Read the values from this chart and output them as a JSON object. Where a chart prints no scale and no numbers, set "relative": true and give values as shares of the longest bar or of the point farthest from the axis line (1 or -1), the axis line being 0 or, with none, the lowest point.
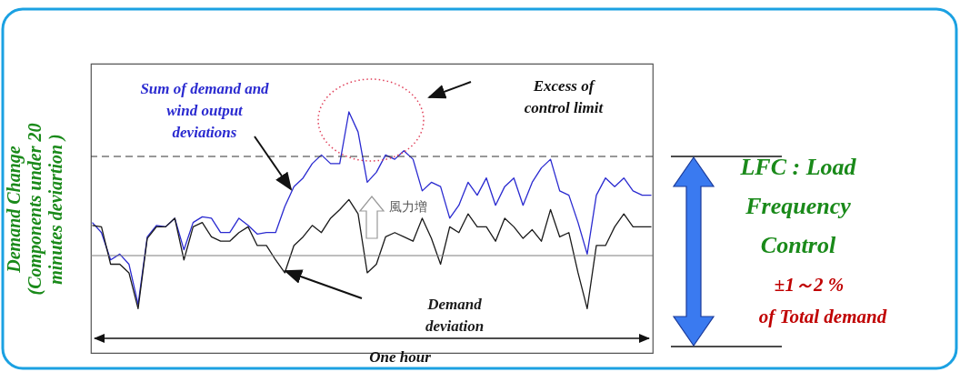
{
  "chart_data": {
    "type": "line",
    "relative": true,
    "ylabel": "Demand Change (Components under 20 minutes deviartion )",
    "categories": [
      null,
      null,
      null,
      null,
      null,
      null,
      null,
      null,
      null,
      null,
      null,
      null,
      null,
      null,
      null,
      null,
      null,
      null,
      null,
      null,
      null,
      null,
      null,
      null,
      null,
      null,
      null,
      null,
      null,
      null,
      null,
      null,
      null,
      null,
      null,
      null,
      null,
      null,
      null,
      null,
      null,
      null,
      null,
      null,
      null,
      null,
      null,
      null,
      null,
      null,
      null,
      null,
      null,
      null,
      null,
      null,
      null,
      null,
      null,
      null,
      null,
      null
    ],
    "series": [
      {
        "name": "Sum of demand and wind output deviations",
        "color": "#2a2ad0",
        "values": [
          0.23,
          0.16,
          -0.03,
          0.01,
          -0.06,
          -0.34,
          0.13,
          0.21,
          0.2,
          0.26,
          0.04,
          0.23,
          0.27,
          0.26,
          0.16,
          0.16,
          0.26,
          0.21,
          0.15,
          0.16,
          0.16,
          0.34,
          0.48,
          0.54,
          0.64,
          0.7,
          0.64,
          0.64,
          1,
          0.86,
          0.51,
          0.58,
          0.7,
          0.67,
          0.73,
          0.67,
          0.45,
          0.51,
          0.48,
          0.26,
          0.35,
          0.51,
          0.42,
          0.54,
          0.35,
          0.48,
          0.54,
          0.35,
          0.51,
          0.61,
          0.67,
          0.45,
          0.42,
          0.23,
          0.01,
          0.42,
          0.54,
          0.48,
          0.54,
          0.45,
          0.42,
          0.42
        ]
      },
      {
        "name": "Demand deviation",
        "color": "#1a1a1a",
        "values": [
          0.21,
          0.2,
          -0.06,
          -0.06,
          -0.12,
          -0.37,
          0.12,
          0.2,
          0.2,
          0.26,
          -0.03,
          0.2,
          0.23,
          0.13,
          0.1,
          0.1,
          0.16,
          0.2,
          0.07,
          0.07,
          -0.03,
          -0.12,
          0.07,
          0.13,
          0.21,
          0.16,
          0.26,
          0.32,
          0.39,
          0.29,
          -0.12,
          -0.06,
          0.13,
          0.16,
          0.13,
          0.1,
          0.26,
          0.12,
          -0.06,
          0.2,
          0.16,
          0.29,
          0.2,
          0.2,
          0.1,
          0.26,
          0.2,
          0.12,
          0.18,
          0.1,
          0.32,
          0.13,
          0.16,
          -0.12,
          -0.37,
          0.07,
          0.07,
          0.2,
          0.29,
          0.2,
          0.2,
          0.2
        ]
      }
    ],
    "ref_lines": [
      {
        "axis": "y",
        "value": 0,
        "color": "#7f7f7f",
        "line_style": "solid"
      },
      {
        "axis": "y",
        "value": 0.69,
        "color": "#333333",
        "line_style": "dashed"
      }
    ],
    "annotations": [
      "Excess of control limit",
      "風力増",
      "One hour",
      "LFC : Load Frequency Control",
      "±1～2 %",
      "of Total demand"
    ]
  }
}
